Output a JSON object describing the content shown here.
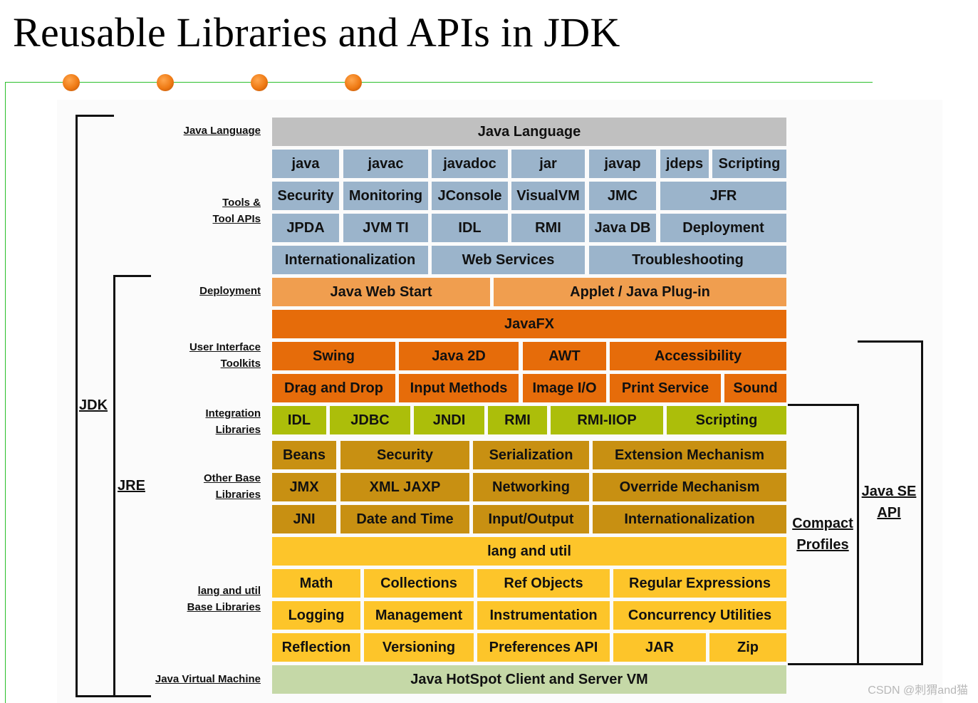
{
  "title": "Reusable Libraries and APIs in JDK",
  "watermark": "CSDN @刺猬and猫",
  "side_labels": {
    "java_language": "Java Language",
    "tools_1": "Tools &",
    "tools_2": "Tool APIs",
    "deployment": "Deployment",
    "ui_1": "User Interface",
    "ui_2": "Toolkits",
    "integration_1": "Integration",
    "integration_2": "Libraries",
    "other_1": "Other Base",
    "other_2": "Libraries",
    "lang_1": "lang and util",
    "lang_2": "Base Libraries",
    "jvm": "Java Virtual Machine"
  },
  "brackets": {
    "jdk": "JDK",
    "jre": "JRE",
    "compact_1": "Compact",
    "compact_2": "Profiles",
    "javase_1": "Java SE",
    "javase_2": "API"
  },
  "colors": {
    "java_language": "#c0c0c0",
    "tools": "#9bb4cb",
    "deployment": "#f09e4f",
    "ui_toolkits": "#e66c0a",
    "integration": "#acbe0a",
    "other_base": "#c89012",
    "lang_util": "#fdc52a",
    "jvm": "#c5d8a7"
  },
  "boxes": {
    "java_language": "Java Language",
    "java": "java",
    "javac": "javac",
    "javadoc": "javadoc",
    "jar_tool": "jar",
    "javap": "javap",
    "jdeps": "jdeps",
    "scripting_tool": "Scripting",
    "security_tool": "Security",
    "monitoring": "Monitoring",
    "jconsole": "JConsole",
    "visualvm": "VisualVM",
    "jmc": "JMC",
    "jfr": "JFR",
    "jpda": "JPDA",
    "jvmti": "JVM TI",
    "idl_tool": "IDL",
    "rmi_tool": "RMI",
    "javadb": "Java DB",
    "deployment_tool": "Deployment",
    "i18n_tool": "Internationalization",
    "web_services": "Web Services",
    "troubleshooting": "Troubleshooting",
    "java_web_start": "Java Web Start",
    "applet": "Applet / Java Plug-in",
    "javafx": "JavaFX",
    "swing": "Swing",
    "java2d": "Java 2D",
    "awt": "AWT",
    "accessibility": "Accessibility",
    "drag_drop": "Drag and Drop",
    "input_methods": "Input Methods",
    "image_io": "Image I/O",
    "print_service": "Print Service",
    "sound": "Sound",
    "idl": "IDL",
    "jdbc": "JDBC",
    "jndi": "JNDI",
    "rmi": "RMI",
    "rmi_iiop": "RMI-IIOP",
    "scripting": "Scripting",
    "beans": "Beans",
    "security": "Security",
    "serialization": "Serialization",
    "extension": "Extension Mechanism",
    "jmx": "JMX",
    "xml_jaxp": "XML JAXP",
    "networking": "Networking",
    "override": "Override Mechanism",
    "jni": "JNI",
    "date_time": "Date and Time",
    "input_output": "Input/Output",
    "i18n": "Internationalization",
    "lang_util": "lang and util",
    "math": "Math",
    "collections": "Collections",
    "ref_objects": "Ref Objects",
    "regex": "Regular Expressions",
    "logging": "Logging",
    "management": "Management",
    "instrumentation": "Instrumentation",
    "concurrency": "Concurrency Utilities",
    "reflection": "Reflection",
    "versioning": "Versioning",
    "preferences": "Preferences API",
    "jar": "JAR",
    "zip": "Zip",
    "hotspot": "Java HotSpot Client and Server VM"
  }
}
